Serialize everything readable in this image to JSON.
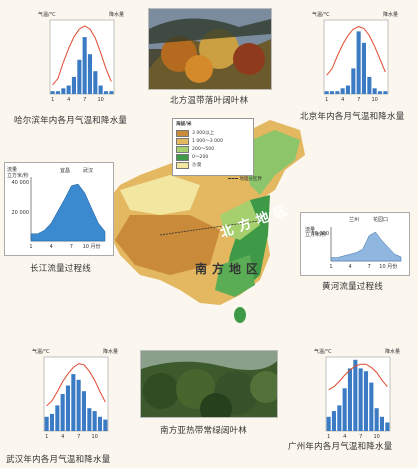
{
  "photos": {
    "north": {
      "caption": "北方温带落叶阔叶林"
    },
    "south": {
      "caption": "南方亚热带常绿阔叶林"
    }
  },
  "climate": {
    "harbin": {
      "caption": "哈尔滨年内各月气温和降水量",
      "temp_axis": "气温/°C",
      "prec_axis": "降水量",
      "ticks": [
        "1",
        "4",
        "7",
        "10"
      ]
    },
    "beijing": {
      "caption": "北京年内各月气温和降水量",
      "temp_axis": "气温/°C",
      "prec_axis": "降水量",
      "ticks": [
        "1",
        "4",
        "7",
        "10"
      ]
    },
    "wuhan": {
      "caption": "武汉年内各月气温和降水量",
      "temp_axis": "气温/°C",
      "prec_axis": "降水量",
      "ticks": [
        "1",
        "4",
        "7",
        "10"
      ]
    },
    "guangzhou": {
      "caption": "广州年内各月气温和降水量",
      "temp_axis": "气温/°C",
      "prec_axis": "降水量",
      "ticks": [
        "1",
        "4",
        "7",
        "10"
      ]
    }
  },
  "flow": {
    "yangtze": {
      "caption": "长江流量过程线",
      "unit": "流量",
      "unit2": "立方米/秒",
      "stations": [
        "宜昌",
        "武汉"
      ],
      "ymax": "40 000",
      "ymid": "20 000",
      "xticks": [
        "1",
        "4",
        "7",
        "10 月份"
      ]
    },
    "yellow": {
      "caption": "黄河流量过程线",
      "unit": "流量",
      "unit2": "立方米/秒",
      "stations": [
        "兰州",
        "花园口"
      ],
      "ymax": "10 000",
      "xticks": [
        "1",
        "4",
        "7",
        "10 月份"
      ]
    }
  },
  "map": {
    "legend_title": "海拔/米",
    "legend_items": [
      "3 000以上",
      "1 000～3 000",
      "200～500",
      "0～200",
      "沙漠"
    ],
    "legend_border": "地理分区界",
    "labels": {
      "north": "北方地区",
      "south": "南方地区",
      "line": "秦岭—淮河"
    },
    "colors": {
      "high": "#c98a3a",
      "mid": "#e0b258",
      "low": "#a6cf6e",
      "plain": "#3f9a48",
      "desert": "#f2e6a0"
    }
  }
}
